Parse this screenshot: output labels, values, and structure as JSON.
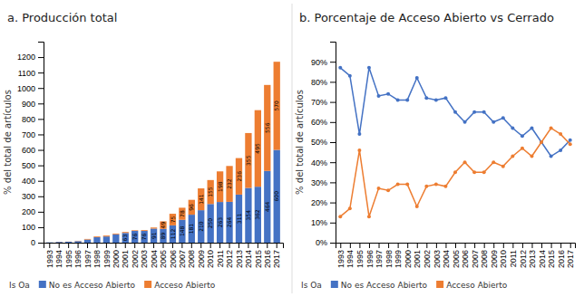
{
  "chart_data": [
    {
      "type": "bar",
      "stacked": true,
      "data_labels": true,
      "legend": "bottom",
      "title": "a.   Producción total",
      "y_label": "% del total de artículos",
      "legend_title": "Is Oa",
      "categories": [
        "1993",
        "1994",
        "1995",
        "1996",
        "1997",
        "1998",
        "1999",
        "2000",
        "2001",
        "2002",
        "2003",
        "2004",
        "2005",
        "2006",
        "2007",
        "2008",
        "2009",
        "2010",
        "2011",
        "2012",
        "2013",
        "2014",
        "2015",
        "2016",
        "2017"
      ],
      "ylim": [
        0,
        1300
      ],
      "yticks": [
        0,
        100,
        200,
        300,
        400,
        500,
        600,
        700,
        800,
        900,
        1000,
        1100,
        1200
      ],
      "series": [
        {
          "name": "No es Acceso Abierto",
          "color": "#4472C4",
          "values": [
            2,
            5,
            6,
            10,
            20,
            35,
            40,
            54,
            63,
            76,
            76,
            91,
            89,
            112,
            148,
            181,
            210,
            250,
            263,
            264,
            311,
            354,
            362,
            464,
            600
          ],
          "value_labels": [
            null,
            null,
            null,
            null,
            null,
            null,
            null,
            null,
            "63",
            "76",
            "76",
            "91",
            "89",
            "112",
            "148",
            "181",
            "210",
            "250",
            "263",
            "264",
            "311",
            "354",
            "362",
            "464",
            "600"
          ]
        },
        {
          "name": "Acceso Abierto",
          "color": "#ED7D31",
          "values": [
            0,
            1,
            1,
            2,
            4,
            5,
            6,
            5,
            6,
            4,
            5,
            7,
            49,
            75,
            78,
            96,
            141,
            155,
            198,
            232,
            236,
            355,
            495,
            556,
            570
          ],
          "value_labels": [
            null,
            null,
            null,
            null,
            null,
            null,
            null,
            null,
            null,
            null,
            null,
            null,
            "49",
            "75",
            "78",
            "96",
            "141",
            "155",
            "198",
            "232",
            "236",
            "355",
            "495",
            "556",
            "570"
          ]
        }
      ]
    },
    {
      "type": "line",
      "legend": "bottom",
      "title": "b. Porcentaje de Acceso Abierto  vs Cerrado",
      "y_label": "% del total de artículos",
      "legend_title": "Is Oa",
      "categories": [
        "1993",
        "1994",
        "1995",
        "1996",
        "1997",
        "1998",
        "1999",
        "2000",
        "2001",
        "2002",
        "2003",
        "2004",
        "2005",
        "2006",
        "2007",
        "2008",
        "2009",
        "2010",
        "2011",
        "2012",
        "2013",
        "2014",
        "2015",
        "2016",
        "2017"
      ],
      "ylim": [
        0,
        100
      ],
      "yticks": [
        {
          "value": 0,
          "label": "0%"
        },
        {
          "value": 10,
          "label": "10%"
        },
        {
          "value": 20,
          "label": "20%"
        },
        {
          "value": 30,
          "label": "30%"
        },
        {
          "value": 40,
          "label": "40%"
        },
        {
          "value": 50,
          "label": "50%"
        },
        {
          "value": 60,
          "label": "60%"
        },
        {
          "value": 70,
          "label": "70%"
        },
        {
          "value": 80,
          "label": "80%"
        },
        {
          "value": 90,
          "label": "90%"
        }
      ],
      "series": [
        {
          "name": "No es Acceso Abierto",
          "color": "#4472C4",
          "marker": "circle",
          "values": [
            87,
            83,
            54,
            87,
            73,
            74,
            71,
            71,
            82,
            72,
            71,
            72,
            65,
            60,
            65,
            65,
            60,
            62,
            57,
            53,
            57,
            50,
            43,
            46,
            51
          ]
        },
        {
          "name": "Acceso Abierto",
          "color": "#ED7D31",
          "marker": "circle",
          "values": [
            13,
            17,
            46,
            13,
            27,
            26,
            29,
            29,
            18,
            28,
            29,
            28,
            35,
            40,
            35,
            35,
            40,
            38,
            43,
            47,
            43,
            50,
            57,
            54,
            49
          ]
        }
      ]
    }
  ]
}
